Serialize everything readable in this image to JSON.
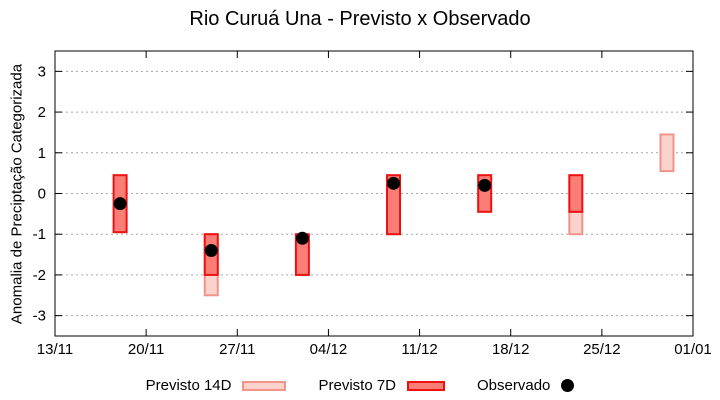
{
  "colors": {
    "background": "#ffffff",
    "axis": "#000000",
    "grid": "#a8a8a8",
    "forecast_14d_fill": "#fbd3cc",
    "forecast_14d_stroke": "#f0948a",
    "forecast_7d_fill": "#fa7e76",
    "forecast_7d_stroke": "#ee1111",
    "observed": "#000000"
  },
  "chart_data": {
    "type": "bar",
    "title": "Rio Curuá Una - Previsto x Observado",
    "xlabel": "",
    "ylabel": "Anomalia de Preciptação Categorizada",
    "ylim": [
      -3.5,
      3.5
    ],
    "ytick_values": [
      3,
      2,
      1,
      0,
      -1,
      -2,
      -3
    ],
    "ytick_labels": [
      "3",
      "2",
      "1",
      "0",
      "-1",
      "-2",
      "-3"
    ],
    "xlim_days": [
      0,
      49
    ],
    "xtick_days": [
      0,
      7,
      14,
      21,
      28,
      35,
      42,
      49
    ],
    "xtick_labels": [
      "13/11",
      "20/11",
      "27/11",
      "04/12",
      "11/12",
      "18/12",
      "25/12",
      "01/01"
    ],
    "grid": true,
    "legend_position": "bottom",
    "series": [
      {
        "name": "Previsto 14D",
        "type": "range-bar",
        "fill": "#fbd3cc",
        "stroke": "#f0948a",
        "points": [
          {
            "date": "25/11",
            "day": 12,
            "low": -2.5,
            "high": -1.0
          },
          {
            "date": "23/12",
            "day": 40,
            "low": -1.0,
            "high": -0.45
          },
          {
            "date": "30/12",
            "day": 47,
            "low": 0.55,
            "high": 1.45
          }
        ]
      },
      {
        "name": "Previsto 7D",
        "type": "range-bar",
        "fill": "#fa7e76",
        "stroke": "#ee1111",
        "points": [
          {
            "date": "18/11",
            "day": 5,
            "low": -0.95,
            "high": 0.45
          },
          {
            "date": "25/11",
            "day": 12,
            "low": -2.0,
            "high": -1.0
          },
          {
            "date": "02/12",
            "day": 19,
            "low": -2.0,
            "high": -1.0
          },
          {
            "date": "09/12",
            "day": 26,
            "low": -1.0,
            "high": 0.45
          },
          {
            "date": "16/12",
            "day": 33,
            "low": -0.45,
            "high": 0.45
          },
          {
            "date": "23/12",
            "day": 40,
            "low": -0.45,
            "high": 0.45
          }
        ]
      },
      {
        "name": "Observado",
        "type": "scatter",
        "color": "#000000",
        "points": [
          {
            "date": "18/11",
            "day": 5,
            "value": -0.25
          },
          {
            "date": "25/11",
            "day": 12,
            "value": -1.4
          },
          {
            "date": "02/12",
            "day": 19,
            "value": -1.1
          },
          {
            "date": "09/12",
            "day": 26,
            "value": 0.25
          },
          {
            "date": "16/12",
            "day": 33,
            "value": 0.2
          }
        ]
      }
    ],
    "legend": [
      {
        "label": "Previsto 14D"
      },
      {
        "label": "Previsto 7D"
      },
      {
        "label": "Observado"
      }
    ]
  }
}
